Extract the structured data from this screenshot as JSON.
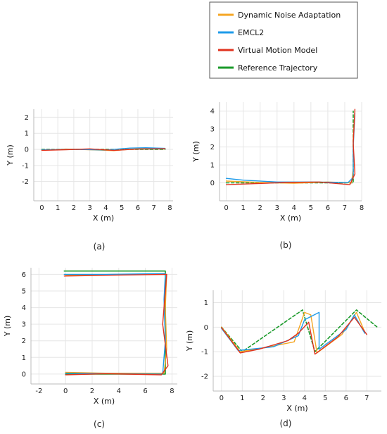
{
  "legend": {
    "entries": [
      {
        "label": "Dynamic Noise Adaptation",
        "color": "#f5a623"
      },
      {
        "label": "EMCL2",
        "color": "#1e9be9"
      },
      {
        "label": "Virtual Motion Model",
        "color": "#e0321e"
      },
      {
        "label": "Reference Trajectory",
        "color": "#1a9a2a"
      }
    ]
  },
  "chart_data": [
    {
      "id": "a",
      "type": "line",
      "caption": "(a)",
      "xlabel": "X (m)",
      "ylabel": "Y (m)",
      "xlim": [
        -0.5,
        8.2
      ],
      "ylim": [
        -3.2,
        2.5
      ],
      "xticks": [
        0,
        1,
        2,
        3,
        4,
        5,
        6,
        7,
        8
      ],
      "yticks": [
        -2,
        -1,
        0,
        1,
        2
      ],
      "grid": true,
      "series": [
        {
          "name": "Reference Trajectory",
          "dashed": true,
          "points": [
            [
              0,
              0
            ],
            [
              7.7,
              0
            ]
          ]
        },
        {
          "name": "Dynamic Noise Adaptation",
          "points": [
            [
              0,
              -0.05
            ],
            [
              1.5,
              0.02
            ],
            [
              3,
              -0.02
            ],
            [
              4.5,
              -0.08
            ],
            [
              6,
              0.05
            ],
            [
              7.7,
              0.03
            ]
          ]
        },
        {
          "name": "EMCL2",
          "points": [
            [
              0,
              -0.03
            ],
            [
              2,
              0
            ],
            [
              4,
              -0.04
            ],
            [
              5.5,
              0.08
            ],
            [
              6.5,
              0.1
            ],
            [
              7.7,
              0.06
            ]
          ]
        },
        {
          "name": "Virtual Motion Model",
          "points": [
            [
              0,
              -0.06
            ],
            [
              1.5,
              -0.02
            ],
            [
              3,
              0.03
            ],
            [
              4.5,
              -0.06
            ],
            [
              6,
              0.02
            ],
            [
              7.7,
              0.04
            ]
          ]
        }
      ]
    },
    {
      "id": "b",
      "type": "line",
      "caption": "(b)",
      "xlabel": "X (m)",
      "ylabel": "Y (m)",
      "xlim": [
        -0.4,
        8.0
      ],
      "ylim": [
        -1.0,
        4.5
      ],
      "xticks": [
        0,
        1,
        2,
        3,
        4,
        5,
        6,
        7,
        8
      ],
      "yticks": [
        0,
        1,
        2,
        3,
        4
      ],
      "grid": true,
      "series": [
        {
          "name": "Reference Trajectory",
          "dashed": true,
          "points": [
            [
              0,
              0
            ],
            [
              7.5,
              0
            ],
            [
              7.5,
              4
            ]
          ]
        },
        {
          "name": "Dynamic Noise Adaptation",
          "points": [
            [
              0,
              0.1
            ],
            [
              2,
              0.02
            ],
            [
              4,
              -0.02
            ],
            [
              6,
              0.05
            ],
            [
              7.4,
              0
            ],
            [
              7.5,
              0.8
            ],
            [
              7.5,
              2.5
            ],
            [
              7.6,
              4.0
            ]
          ]
        },
        {
          "name": "EMCL2",
          "points": [
            [
              0,
              0.25
            ],
            [
              1,
              0.15
            ],
            [
              3,
              0.05
            ],
            [
              5,
              0.05
            ],
            [
              7.2,
              0.02
            ],
            [
              7.5,
              0.3
            ],
            [
              7.5,
              2.0
            ],
            [
              7.6,
              3.9
            ]
          ]
        },
        {
          "name": "Virtual Motion Model",
          "points": [
            [
              0,
              -0.1
            ],
            [
              1.5,
              -0.05
            ],
            [
              3.5,
              0.02
            ],
            [
              5.5,
              0.05
            ],
            [
              7.3,
              -0.1
            ],
            [
              7.6,
              0.5
            ],
            [
              7.5,
              2.2
            ],
            [
              7.6,
              4.1
            ]
          ]
        }
      ]
    },
    {
      "id": "c",
      "type": "line",
      "caption": "(c)",
      "xlabel": "X (m)",
      "ylabel": "Y (m)",
      "xlim": [
        -2.6,
        8.4
      ],
      "ylim": [
        -0.6,
        6.4
      ],
      "xticks": [
        -2,
        0,
        2,
        4,
        6,
        8
      ],
      "yticks": [
        0,
        1,
        2,
        3,
        4,
        5,
        6
      ],
      "grid": true,
      "series": [
        {
          "name": "Reference Trajectory",
          "dashed": false,
          "points": [
            [
              0,
              0
            ],
            [
              7.5,
              0
            ],
            [
              7.5,
              6.2
            ],
            [
              -0.1,
              6.2
            ]
          ]
        },
        {
          "name": "Dynamic Noise Adaptation",
          "points": [
            [
              0,
              0.1
            ],
            [
              3,
              0.05
            ],
            [
              7.4,
              0.05
            ],
            [
              7.6,
              1.5
            ],
            [
              7.5,
              4
            ],
            [
              7.6,
              6.0
            ],
            [
              4,
              6.0
            ],
            [
              0,
              5.95
            ]
          ]
        },
        {
          "name": "EMCL2",
          "points": [
            [
              0,
              0.05
            ],
            [
              3.5,
              0.02
            ],
            [
              7.3,
              0
            ],
            [
              7.5,
              2
            ],
            [
              7.4,
              4.5
            ],
            [
              7.5,
              6.05
            ],
            [
              3,
              6.0
            ],
            [
              -0.1,
              6.0
            ]
          ]
        },
        {
          "name": "Virtual Motion Model",
          "points": [
            [
              0,
              -0.05
            ],
            [
              3,
              0.02
            ],
            [
              7.2,
              -0.05
            ],
            [
              7.7,
              0.5
            ],
            [
              7.3,
              3
            ],
            [
              7.6,
              6.0
            ],
            [
              3.5,
              5.95
            ],
            [
              -0.1,
              5.9
            ]
          ]
        }
      ]
    },
    {
      "id": "d",
      "type": "line",
      "caption": "(d)",
      "xlabel": "X (m)",
      "ylabel": "Y (m)",
      "xlim": [
        -0.4,
        7.7
      ],
      "ylim": [
        -2.6,
        1.5
      ],
      "xticks": [
        0,
        1,
        2,
        3,
        4,
        5,
        6,
        7
      ],
      "yticks": [
        -2,
        -1,
        0,
        1
      ],
      "grid": true,
      "series": [
        {
          "name": "Reference Trajectory",
          "dashed": true,
          "points": [
            [
              0,
              0
            ],
            [
              1,
              -1
            ],
            [
              3.9,
              0.7
            ],
            [
              4.5,
              -1
            ],
            [
              6.5,
              0.7
            ],
            [
              7.5,
              0
            ]
          ]
        },
        {
          "name": "Dynamic Noise Adaptation",
          "points": [
            [
              0,
              0
            ],
            [
              0.9,
              -1
            ],
            [
              2,
              -0.85
            ],
            [
              3.5,
              -0.6
            ],
            [
              4.0,
              0.6
            ],
            [
              4.3,
              0.5
            ],
            [
              4.6,
              -1.05
            ],
            [
              5.8,
              -0.3
            ],
            [
              6.5,
              0.6
            ],
            [
              6.9,
              -0.2
            ]
          ]
        },
        {
          "name": "EMCL2",
          "points": [
            [
              0,
              -0.05
            ],
            [
              0.8,
              -0.95
            ],
            [
              2.5,
              -0.8
            ],
            [
              3.7,
              -0.35
            ],
            [
              4.0,
              0.3
            ],
            [
              4.7,
              0.6
            ],
            [
              4.7,
              -0.9
            ],
            [
              6.0,
              -0.1
            ],
            [
              6.4,
              0.5
            ],
            [
              6.9,
              -0.25
            ]
          ]
        },
        {
          "name": "Virtual Motion Model",
          "points": [
            [
              0,
              -0.02
            ],
            [
              0.9,
              -1.05
            ],
            [
              1.8,
              -0.9
            ],
            [
              3.2,
              -0.55
            ],
            [
              3.7,
              -0.25
            ],
            [
              4.2,
              0.2
            ],
            [
              4.5,
              -1.1
            ],
            [
              5.6,
              -0.4
            ],
            [
              6.4,
              0.4
            ],
            [
              7.0,
              -0.3
            ]
          ]
        }
      ]
    }
  ]
}
